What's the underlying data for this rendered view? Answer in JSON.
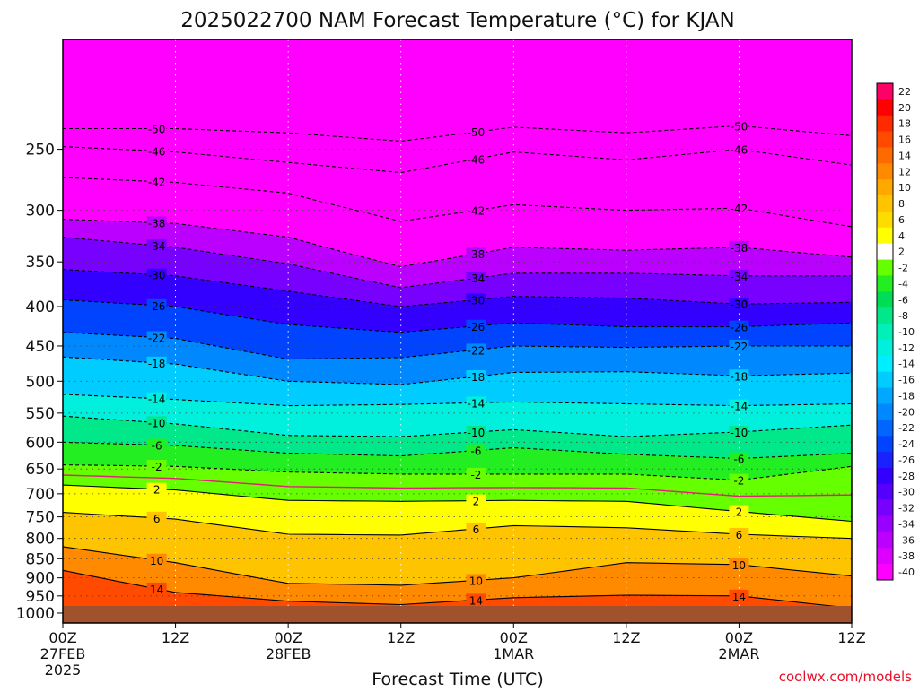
{
  "chart_data": {
    "type": "heatmap",
    "title": "2025022700 NAM Forecast Temperature (°C) for KJAN",
    "xlabel": "Forecast Time (UTC)",
    "ylabel": "",
    "credit": "coolwx.com/models",
    "units": "°C",
    "x_range_hours": [
      0,
      84
    ],
    "y_scale": "log-pressure",
    "y_range_hpa": [
      1030,
      180
    ],
    "y_ticks": [
      250,
      300,
      350,
      400,
      450,
      500,
      550,
      600,
      650,
      700,
      750,
      800,
      850,
      900,
      950,
      1000
    ],
    "x_ticks": [
      {
        "hour": 0,
        "lines": [
          "00Z",
          "27FEB",
          "2025"
        ]
      },
      {
        "hour": 12,
        "lines": [
          "12Z"
        ]
      },
      {
        "hour": 24,
        "lines": [
          "00Z",
          "28FEB"
        ]
      },
      {
        "hour": 36,
        "lines": [
          "12Z"
        ]
      },
      {
        "hour": 48,
        "lines": [
          "00Z",
          "1MAR"
        ]
      },
      {
        "hour": 60,
        "lines": [
          "12Z"
        ]
      },
      {
        "hour": 72,
        "lines": [
          "00Z",
          "2MAR"
        ]
      },
      {
        "hour": 84,
        "lines": [
          "12Z"
        ]
      }
    ],
    "grid": true,
    "legend": "right",
    "colorbar": [
      {
        "label": "22",
        "color": "#ff0066"
      },
      {
        "label": "20",
        "color": "#ff0000"
      },
      {
        "label": "18",
        "color": "#ff2a00"
      },
      {
        "label": "16",
        "color": "#ff4a00"
      },
      {
        "label": "14",
        "color": "#ff6a00"
      },
      {
        "label": "12",
        "color": "#ff8a00"
      },
      {
        "label": "10",
        "color": "#ffa800"
      },
      {
        "label": "8",
        "color": "#ffc400"
      },
      {
        "label": "6",
        "color": "#ffdc00"
      },
      {
        "label": "4",
        "color": "#ffff00"
      },
      {
        "label": "2",
        "color": "#ffffff"
      },
      {
        "label": "-2",
        "color": "#66ff00"
      },
      {
        "label": "-4",
        "color": "#22ee22"
      },
      {
        "label": "-6",
        "color": "#00dd55"
      },
      {
        "label": "-8",
        "color": "#00e88a"
      },
      {
        "label": "-10",
        "color": "#00f0b8"
      },
      {
        "label": "-12",
        "color": "#00f0dd"
      },
      {
        "label": "-14",
        "color": "#00eeff"
      },
      {
        "label": "-16",
        "color": "#00ccff"
      },
      {
        "label": "-18",
        "color": "#00a8ff"
      },
      {
        "label": "-20",
        "color": "#0088ff"
      },
      {
        "label": "-22",
        "color": "#0066ff"
      },
      {
        "label": "-24",
        "color": "#0044ff"
      },
      {
        "label": "-26",
        "color": "#1a22ff"
      },
      {
        "label": "-28",
        "color": "#3300ff"
      },
      {
        "label": "-30",
        "color": "#5500ff"
      },
      {
        "label": "-32",
        "color": "#7700ff"
      },
      {
        "label": "-34",
        "color": "#9900ff"
      },
      {
        "label": "-36",
        "color": "#bb00ff"
      },
      {
        "label": "-38",
        "color": "#dd00ff"
      },
      {
        "label": "-40",
        "color": "#ff00ff"
      }
    ],
    "surface_color": "#a0522d",
    "freezing_line_color": "#e0207a",
    "contours": [
      {
        "value": -50,
        "p": [
          [
            0,
            235
          ],
          [
            12,
            235
          ],
          [
            24,
            238
          ],
          [
            36,
            244
          ],
          [
            48,
            234
          ],
          [
            60,
            238
          ],
          [
            72,
            233
          ],
          [
            84,
            240
          ]
        ]
      },
      {
        "value": -46,
        "p": [
          [
            0,
            248
          ],
          [
            12,
            252
          ],
          [
            24,
            260
          ],
          [
            36,
            268
          ],
          [
            48,
            252
          ],
          [
            60,
            258
          ],
          [
            72,
            250
          ],
          [
            84,
            262
          ]
        ]
      },
      {
        "value": -42,
        "p": [
          [
            0,
            272
          ],
          [
            12,
            276
          ],
          [
            24,
            285
          ],
          [
            36,
            310
          ],
          [
            48,
            295
          ],
          [
            60,
            300
          ],
          [
            72,
            298
          ],
          [
            84,
            315
          ]
        ]
      },
      {
        "value": -38,
        "p": [
          [
            0,
            308
          ],
          [
            12,
            312
          ],
          [
            24,
            325
          ],
          [
            36,
            355
          ],
          [
            48,
            335
          ],
          [
            60,
            338
          ],
          [
            72,
            335
          ],
          [
            84,
            345
          ]
        ]
      },
      {
        "value": -34,
        "p": [
          [
            0,
            325
          ],
          [
            12,
            335
          ],
          [
            24,
            352
          ],
          [
            36,
            378
          ],
          [
            48,
            362
          ],
          [
            60,
            362
          ],
          [
            72,
            365
          ],
          [
            84,
            365
          ]
        ]
      },
      {
        "value": -30,
        "p": [
          [
            0,
            358
          ],
          [
            12,
            365
          ],
          [
            24,
            382
          ],
          [
            36,
            400
          ],
          [
            48,
            388
          ],
          [
            60,
            390
          ],
          [
            72,
            397
          ],
          [
            84,
            395
          ]
        ]
      },
      {
        "value": -26,
        "p": [
          [
            0,
            392
          ],
          [
            12,
            400
          ],
          [
            24,
            422
          ],
          [
            36,
            432
          ],
          [
            48,
            420
          ],
          [
            60,
            425
          ],
          [
            72,
            425
          ],
          [
            84,
            420
          ]
        ]
      },
      {
        "value": -22,
        "p": [
          [
            0,
            432
          ],
          [
            12,
            440
          ],
          [
            24,
            468
          ],
          [
            36,
            466
          ],
          [
            48,
            450
          ],
          [
            60,
            452
          ],
          [
            72,
            450
          ],
          [
            84,
            450
          ]
        ]
      },
      {
        "value": -18,
        "p": [
          [
            0,
            465
          ],
          [
            12,
            475
          ],
          [
            24,
            500
          ],
          [
            36,
            505
          ],
          [
            48,
            487
          ],
          [
            60,
            486
          ],
          [
            72,
            492
          ],
          [
            84,
            488
          ]
        ]
      },
      {
        "value": -14,
        "p": [
          [
            0,
            520
          ],
          [
            12,
            528
          ],
          [
            24,
            538
          ],
          [
            36,
            536
          ],
          [
            48,
            532
          ],
          [
            60,
            535
          ],
          [
            72,
            538
          ],
          [
            84,
            535
          ]
        ]
      },
      {
        "value": -10,
        "p": [
          [
            0,
            555
          ],
          [
            12,
            568
          ],
          [
            24,
            588
          ],
          [
            36,
            590
          ],
          [
            48,
            578
          ],
          [
            60,
            590
          ],
          [
            72,
            582
          ],
          [
            84,
            570
          ]
        ]
      },
      {
        "value": -6,
        "p": [
          [
            0,
            600
          ],
          [
            12,
            606
          ],
          [
            24,
            620
          ],
          [
            36,
            625
          ],
          [
            48,
            610
          ],
          [
            60,
            622
          ],
          [
            72,
            630
          ],
          [
            84,
            620
          ]
        ]
      },
      {
        "value": -2,
        "p": [
          [
            0,
            642
          ],
          [
            12,
            645
          ],
          [
            24,
            656
          ],
          [
            36,
            660
          ],
          [
            48,
            660
          ],
          [
            60,
            660
          ],
          [
            72,
            672
          ],
          [
            84,
            645
          ]
        ]
      },
      {
        "value": 2,
        "p": [
          [
            0,
            682
          ],
          [
            12,
            692
          ],
          [
            24,
            714
          ],
          [
            36,
            716
          ],
          [
            48,
            714
          ],
          [
            60,
            716
          ],
          [
            72,
            738
          ],
          [
            84,
            760
          ]
        ]
      },
      {
        "value": 6,
        "p": [
          [
            0,
            740
          ],
          [
            12,
            755
          ],
          [
            24,
            790
          ],
          [
            36,
            792
          ],
          [
            48,
            770
          ],
          [
            60,
            775
          ],
          [
            72,
            790
          ],
          [
            84,
            800
          ]
        ]
      },
      {
        "value": 10,
        "p": [
          [
            0,
            820
          ],
          [
            12,
            860
          ],
          [
            24,
            915
          ],
          [
            36,
            920
          ],
          [
            48,
            900
          ],
          [
            60,
            860
          ],
          [
            72,
            865
          ],
          [
            84,
            895
          ]
        ]
      },
      {
        "value": 14,
        "p": [
          [
            0,
            880
          ],
          [
            12,
            940
          ],
          [
            24,
            965
          ],
          [
            36,
            975
          ],
          [
            48,
            955
          ],
          [
            60,
            948
          ],
          [
            72,
            950
          ],
          [
            84,
            985
          ]
        ]
      }
    ]
  }
}
